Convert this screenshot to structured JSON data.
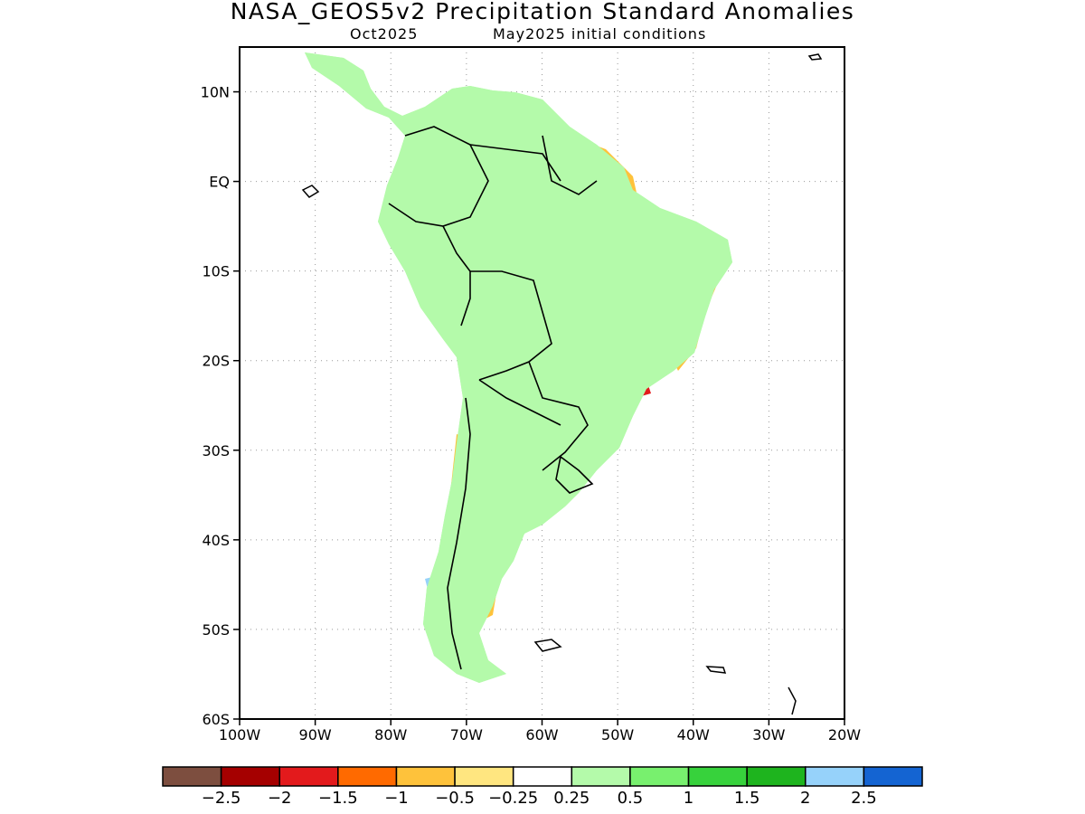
{
  "header": {
    "title": "NASA_GEOS5v2 Precipitation Standard Anomalies",
    "valid_month": "Oct2025",
    "initial_conditions": "May2025 initial conditions"
  },
  "map": {
    "lon_range": [
      -100,
      -20
    ],
    "lat_range": [
      -60,
      15
    ],
    "lat_ticks": [
      {
        "value": 10,
        "label": "10N"
      },
      {
        "value": 0,
        "label": "EQ"
      },
      {
        "value": -10,
        "label": "10S"
      },
      {
        "value": -20,
        "label": "20S"
      },
      {
        "value": -30,
        "label": "30S"
      },
      {
        "value": -40,
        "label": "40S"
      },
      {
        "value": -50,
        "label": "50S"
      },
      {
        "value": -60,
        "label": "60S"
      }
    ],
    "lon_ticks": [
      {
        "value": -100,
        "label": "100W"
      },
      {
        "value": -90,
        "label": "90W"
      },
      {
        "value": -80,
        "label": "80W"
      },
      {
        "value": -70,
        "label": "70W"
      },
      {
        "value": -60,
        "label": "60W"
      },
      {
        "value": -50,
        "label": "50W"
      },
      {
        "value": -40,
        "label": "40W"
      },
      {
        "value": -30,
        "label": "30W"
      },
      {
        "value": -20,
        "label": "20W"
      }
    ],
    "grid": true,
    "colors": {
      "dry_strong": "#e31a1c",
      "dry": "#ff6a00",
      "dry_moderate": "#fec23b",
      "dry_weak": "#ffe680",
      "wet_weak": "#b4faaa",
      "wet": "#78f06e",
      "wet_moderate": "#37d23c",
      "wet_strong": "#1eb41e",
      "very_wet_light": "#96d2fa",
      "very_wet": "#1464d2"
    }
  },
  "colorbar": {
    "colors": [
      "#7d4e3f",
      "#a50000",
      "#e31a1c",
      "#ff6a00",
      "#fec23b",
      "#ffe680",
      "#ffffff",
      "#b4faaa",
      "#78f06e",
      "#37d23c",
      "#1eb41e",
      "#96d2fa",
      "#1464d2"
    ],
    "labels": [
      "−2.5",
      "−2",
      "−1.5",
      "−1",
      "−0.5",
      "−0.25",
      "0.25",
      "0.5",
      "1",
      "1.5",
      "2",
      "2.5"
    ]
  }
}
